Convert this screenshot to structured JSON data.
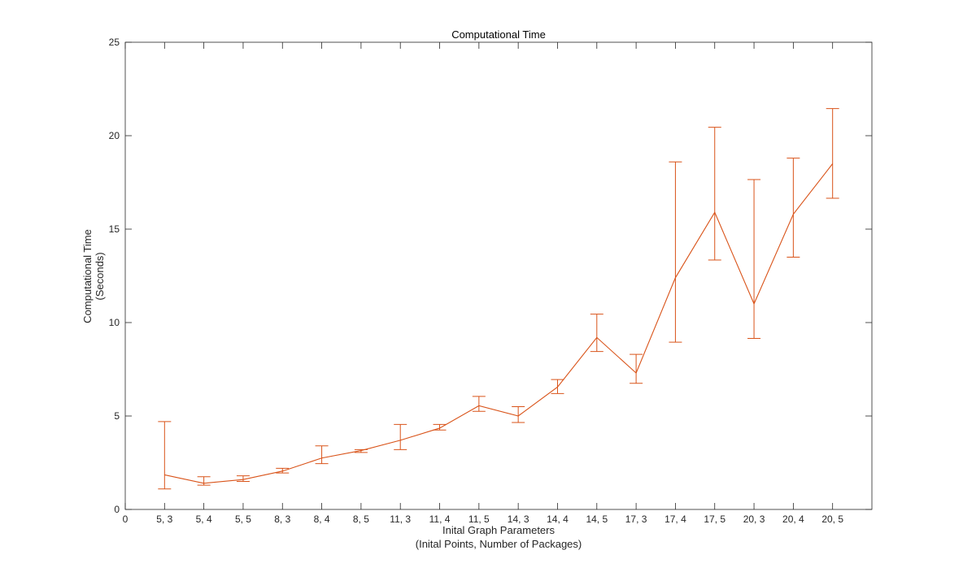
{
  "chart_data": {
    "type": "line",
    "title": "Computational Time",
    "xlabel": [
      "Inital Graph Parameters",
      "(Inital Points, Number of Packages)"
    ],
    "ylabel": [
      "Computational Time",
      "(Seconds)"
    ],
    "x_tick_labels": [
      "0",
      "5, 3",
      "5, 4",
      "5, 5",
      "8, 3",
      "8, 4",
      "8, 5",
      "11, 3",
      "11, 4",
      "11, 5",
      "14, 3",
      "14, 4",
      "14, 5",
      "17, 3",
      "17, 4",
      "17, 5",
      "20, 3",
      "20, 4",
      "20, 5"
    ],
    "y_tick_labels": [
      "0",
      "5",
      "10",
      "15",
      "20",
      "25"
    ],
    "ylim": [
      0,
      25
    ],
    "xlim": [
      0,
      19
    ],
    "grid": false,
    "series_color": "#d95319",
    "series": [
      {
        "categories": [
          "5, 3",
          "5, 4",
          "5, 5",
          "8, 3",
          "8, 4",
          "8, 5",
          "11, 3",
          "11, 4",
          "11, 5",
          "14, 3",
          "14, 4",
          "14, 5",
          "17, 3",
          "17, 4",
          "17, 5",
          "20, 3",
          "20, 4",
          "20, 5"
        ],
        "values": [
          1.85,
          1.4,
          1.6,
          2.05,
          2.75,
          3.15,
          3.7,
          4.35,
          5.55,
          5.0,
          6.55,
          9.2,
          7.3,
          12.4,
          15.9,
          11.0,
          15.8,
          18.5
        ],
        "error_upper": [
          4.7,
          1.75,
          1.8,
          2.2,
          3.4,
          3.2,
          4.55,
          4.55,
          6.05,
          5.5,
          6.95,
          10.45,
          8.3,
          18.6,
          20.45,
          17.65,
          18.8,
          21.45
        ],
        "error_lower": [
          1.1,
          1.3,
          1.5,
          1.95,
          2.45,
          3.05,
          3.2,
          4.25,
          5.25,
          4.65,
          6.2,
          8.45,
          6.75,
          8.95,
          13.35,
          9.15,
          13.5,
          16.65
        ]
      }
    ]
  }
}
